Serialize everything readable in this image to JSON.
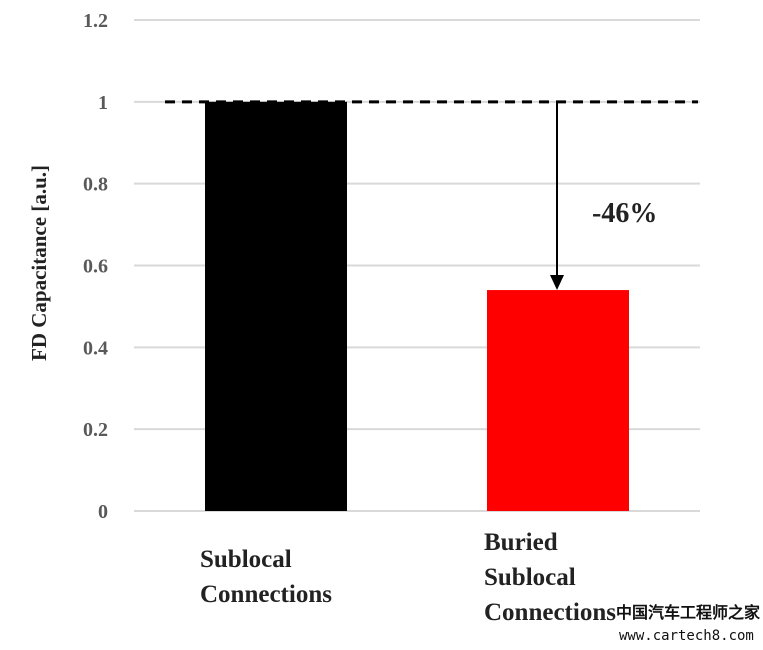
{
  "chart_data": {
    "type": "bar",
    "title": "",
    "xlabel": "",
    "ylabel": "FD Capacitance  [a.u.]",
    "categories": [
      [
        "Sublocal",
        "Connections"
      ],
      [
        "Buried",
        "Sublocal",
        "Connections"
      ]
    ],
    "values": [
      1.0,
      0.54
    ],
    "colors": [
      "#000000",
      "#ff0000"
    ],
    "ylim": [
      0,
      1.2
    ],
    "yticks": [
      0,
      0.2,
      0.4,
      0.6,
      0.8,
      1,
      1.2
    ],
    "ytick_labels": [
      "0",
      "0.2",
      "0.4",
      "0.6",
      "0.8",
      "1",
      "1.2"
    ],
    "grid": true,
    "reference_line": {
      "y": 1,
      "style": "dashed",
      "color": "#000000"
    },
    "annotation": {
      "text": "-46%",
      "from_value": 1,
      "to_value": 0.54
    }
  },
  "watermark": {
    "line1": "中国汽车工程师之家",
    "line2": "www.cartech8.com"
  }
}
